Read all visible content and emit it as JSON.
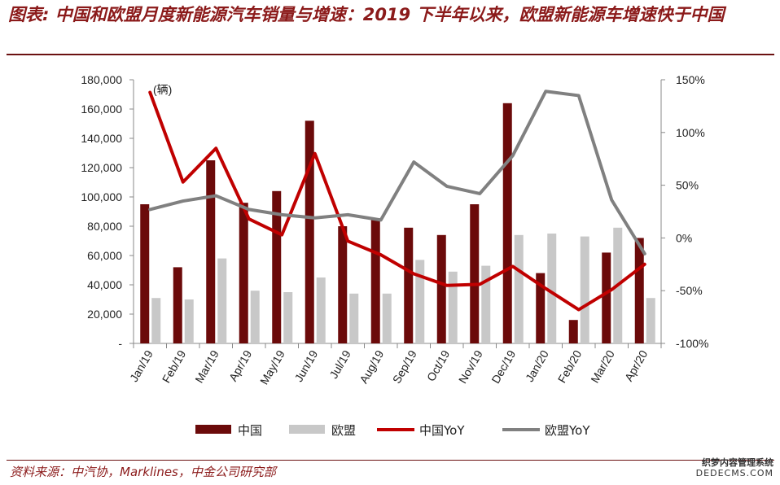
{
  "title": "图表: 中国和欧盟月度新能源汽车销量与增速：2019 下半年以来，欧盟新能源车增速快于中国",
  "source": "资料来源：中汽协，Marklines，中金公司研究部",
  "watermark": {
    "line1": "织梦内容管理系统",
    "line2": "DEDECMS.COM"
  },
  "colors": {
    "china_bar": "#6B0A0A",
    "eu_bar": "#C8C8C8",
    "china_line": "#C00000",
    "eu_line": "#808080",
    "title": "#8B1A1A"
  },
  "chart_data": {
    "type": "bar",
    "unit_label": "(辆)",
    "categories": [
      "Jan/19",
      "Feb/19",
      "Mar/19",
      "Apr/19",
      "May/19",
      "Jun/19",
      "Jul/19",
      "Aug/19",
      "Sep/19",
      "Oct/19",
      "Nov/19",
      "Dec/19",
      "Jan/20",
      "Feb/20",
      "Mar/20",
      "Apr/20"
    ],
    "series": [
      {
        "name": "中国",
        "type": "bar",
        "axis": "left",
        "values": [
          95000,
          52000,
          125000,
          96000,
          104000,
          152000,
          80000,
          85000,
          79000,
          74000,
          95000,
          164000,
          48000,
          16000,
          62000,
          72000
        ]
      },
      {
        "name": "欧盟",
        "type": "bar",
        "axis": "left",
        "values": [
          31000,
          30000,
          58000,
          36000,
          35000,
          45000,
          34000,
          34000,
          57000,
          49000,
          53000,
          74000,
          75000,
          73000,
          79000,
          31000
        ]
      },
      {
        "name": "中国YoY",
        "type": "line",
        "axis": "right",
        "values": [
          138,
          53,
          85,
          18,
          3,
          80,
          -3,
          -16,
          -34,
          -45,
          -44,
          -27,
          -48,
          -68,
          -49,
          -25
        ]
      },
      {
        "name": "欧盟YoY",
        "type": "line",
        "axis": "right",
        "values": [
          27,
          35,
          40,
          27,
          22,
          19,
          22,
          17,
          72,
          49,
          42,
          78,
          139,
          135,
          36,
          -15
        ]
      }
    ],
    "left_axis": {
      "ylim": [
        0,
        180000
      ],
      "ticks": [
        "-",
        "20,000",
        "40,000",
        "60,000",
        "80,000",
        "100,000",
        "120,000",
        "140,000",
        "160,000",
        "180,000"
      ],
      "tick_values": [
        0,
        20000,
        40000,
        60000,
        80000,
        100000,
        120000,
        140000,
        160000,
        180000
      ]
    },
    "right_axis": {
      "ylim": [
        -100,
        150
      ],
      "ticks": [
        "-100%",
        "-50%",
        "0%",
        "50%",
        "100%",
        "150%"
      ],
      "tick_values": [
        -100,
        -50,
        0,
        50,
        100,
        150
      ]
    },
    "legend_position": "bottom",
    "grid": false
  }
}
